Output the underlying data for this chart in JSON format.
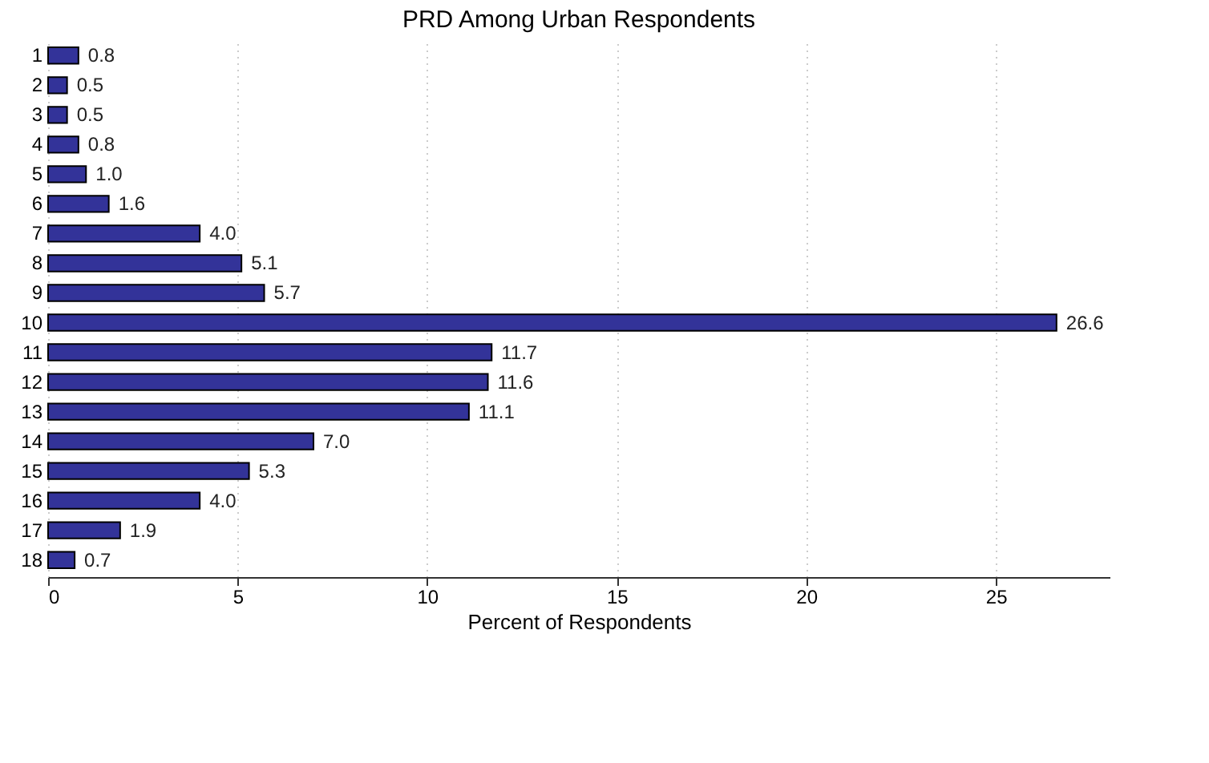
{
  "chart_data": {
    "type": "bar",
    "orientation": "horizontal",
    "title": "PRD Among Urban Respondents",
    "xlabel": "Percent of Respondents",
    "categories": [
      "1",
      "2",
      "3",
      "4",
      "5",
      "6",
      "7",
      "8",
      "9",
      "10",
      "11",
      "12",
      "13",
      "14",
      "15",
      "16",
      "17",
      "18"
    ],
    "values": [
      0.8,
      0.5,
      0.5,
      0.8,
      1.0,
      1.6,
      4.0,
      5.1,
      5.7,
      26.6,
      11.7,
      11.6,
      11.1,
      7.0,
      5.3,
      4.0,
      1.9,
      0.7
    ],
    "value_labels": [
      "0.8",
      "0.5",
      "0.5",
      "0.8",
      "1.0",
      "1.6",
      "4.0",
      "5.1",
      "5.7",
      "26.6",
      "11.7",
      "11.6",
      "11.1",
      "7.0",
      "5.3",
      "4.0",
      "1.9",
      "0.7"
    ],
    "color": "#333399",
    "xlim": [
      0,
      28
    ],
    "xticks": [
      0,
      5,
      10,
      15,
      20,
      25
    ],
    "grid": "x"
  }
}
